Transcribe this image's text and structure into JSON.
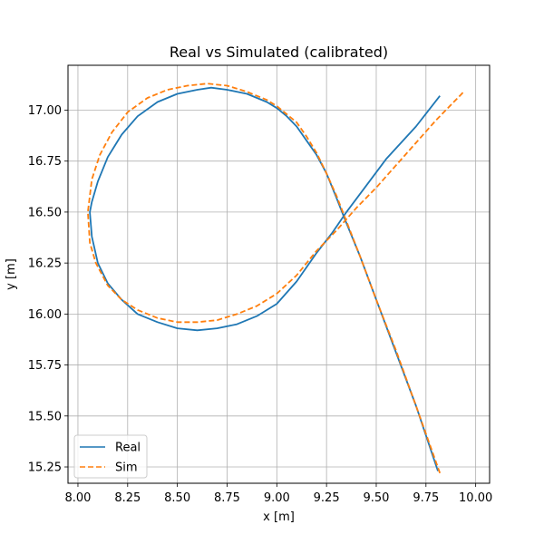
{
  "chart_data": {
    "type": "line",
    "title": "Real vs Simulated (calibrated)",
    "xlabel": "x [m]",
    "ylabel": "y [m]",
    "xlim": [
      7.95,
      10.07
    ],
    "ylim": [
      15.17,
      17.22
    ],
    "xticks": [
      8.0,
      8.25,
      8.5,
      8.75,
      9.0,
      9.25,
      9.5,
      9.75,
      10.0
    ],
    "xtick_labels": [
      "8.00",
      "8.25",
      "8.50",
      "8.75",
      "9.00",
      "9.25",
      "9.50",
      "9.75",
      "10.00"
    ],
    "yticks": [
      15.25,
      15.5,
      15.75,
      16.0,
      16.25,
      16.5,
      16.75,
      17.0
    ],
    "ytick_labels": [
      "15.25",
      "15.50",
      "15.75",
      "16.00",
      "16.25",
      "16.50",
      "16.75",
      "17.00"
    ],
    "grid": true,
    "legend_position": "lower-left",
    "series": [
      {
        "name": "Real",
        "color": "#1f77b4",
        "style": "solid",
        "x": [
          9.81,
          9.7,
          9.6,
          9.5,
          9.42,
          9.34,
          9.3,
          9.25,
          9.2,
          9.15,
          9.1,
          9.05,
          9.0,
          8.95,
          8.85,
          8.75,
          8.67,
          8.6,
          8.5,
          8.4,
          8.3,
          8.22,
          8.15,
          8.1,
          8.07,
          8.06,
          8.07,
          8.1,
          8.15,
          8.22,
          8.3,
          8.4,
          8.5,
          8.6,
          8.7,
          8.8,
          8.9,
          9.0,
          9.1,
          9.2,
          9.28,
          9.35,
          9.45,
          9.55,
          9.7,
          9.82
        ],
        "y": [
          15.23,
          15.55,
          15.81,
          16.07,
          16.28,
          16.47,
          16.57,
          16.69,
          16.78,
          16.85,
          16.92,
          16.97,
          17.01,
          17.04,
          17.08,
          17.1,
          17.11,
          17.1,
          17.08,
          17.04,
          16.97,
          16.88,
          16.77,
          16.65,
          16.55,
          16.5,
          16.38,
          16.25,
          16.15,
          16.07,
          16.0,
          15.96,
          15.93,
          15.92,
          15.93,
          15.95,
          15.99,
          16.05,
          16.16,
          16.3,
          16.4,
          16.5,
          16.63,
          16.76,
          16.92,
          17.07
        ]
      },
      {
        "name": "Sim",
        "color": "#ff7f0e",
        "style": "dashed",
        "x": [
          9.82,
          9.7,
          9.6,
          9.5,
          9.42,
          9.34,
          9.3,
          9.25,
          9.2,
          9.15,
          9.1,
          9.05,
          9.0,
          8.95,
          8.85,
          8.75,
          8.65,
          8.55,
          8.45,
          8.35,
          8.25,
          8.17,
          8.11,
          8.07,
          8.05,
          8.06,
          8.09,
          8.15,
          8.22,
          8.3,
          8.4,
          8.5,
          8.6,
          8.7,
          8.8,
          8.9,
          9.0,
          9.1,
          9.2,
          9.3,
          9.4,
          9.5,
          9.6,
          9.7,
          9.8,
          9.94
        ],
        "y": [
          15.22,
          15.55,
          15.82,
          16.07,
          16.28,
          16.48,
          16.58,
          16.69,
          16.79,
          16.87,
          16.94,
          16.98,
          17.02,
          17.05,
          17.09,
          17.12,
          17.13,
          17.12,
          17.1,
          17.06,
          16.99,
          16.89,
          16.78,
          16.66,
          16.5,
          16.35,
          16.25,
          16.14,
          16.07,
          16.02,
          15.98,
          15.96,
          15.96,
          15.97,
          16.0,
          16.04,
          16.1,
          16.19,
          16.31,
          16.41,
          16.52,
          16.62,
          16.73,
          16.84,
          16.95,
          17.09
        ]
      }
    ]
  }
}
